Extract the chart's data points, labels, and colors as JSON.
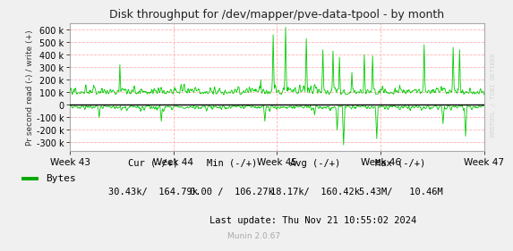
{
  "title": "Disk throughput for /dev/mapper/pve-data-tpool - by month",
  "ylabel": "Pr second read (-) / write (+)",
  "xlabel_ticks": [
    "Week 43",
    "Week 44",
    "Week 45",
    "Week 46",
    "Week 47"
  ],
  "ylim": [
    -370000,
    650000
  ],
  "yticks": [
    -300000,
    -200000,
    -100000,
    0,
    100000,
    200000,
    300000,
    400000,
    500000,
    600000
  ],
  "line_color": "#00cc00",
  "bg_color": "#f0f0f0",
  "plot_bg_color": "#ffffff",
  "grid_color": "#ffaaaa",
  "watermark": "RRDTOOL / TOBI OETIKER",
  "footer_left": "Bytes",
  "legend_color": "#00aa00",
  "cur_label": "Cur (-/+)",
  "min_label": "Min (-/+)",
  "avg_label": "Avg (-/+)",
  "max_label": "Max (-/+)",
  "cur_val": "30.43k/  164.79k",
  "min_val": "0.00 /  106.27k",
  "avg_val": "18.17k/  160.42k",
  "max_val": "5.43M/   10.46M",
  "last_update": "Last update: Thu Nov 21 10:55:02 2024",
  "munin_version": "Munin 2.0.67",
  "n_points": 900,
  "seed": 42
}
